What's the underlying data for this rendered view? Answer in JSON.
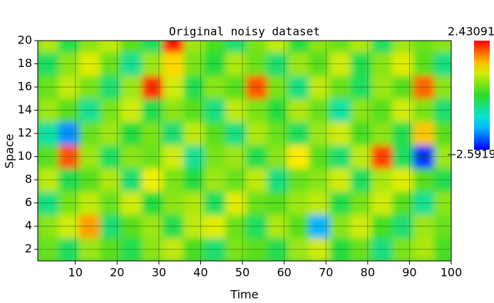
{
  "chart_data": {
    "type": "heatmap",
    "title": "Original noisy dataset",
    "x_label": "Time",
    "y_label": "Space",
    "x": [
      3.5,
      8.5,
      13.5,
      18.5,
      23.5,
      28.5,
      33.5,
      38.5,
      43.5,
      48.5,
      53.5,
      58.5,
      63.5,
      68.5,
      73.5,
      78.5,
      83.5,
      88.5,
      93.5,
      98.5
    ],
    "y": [
      2,
      4,
      6,
      8,
      10,
      12,
      14,
      16,
      18,
      20
    ],
    "z": [
      [
        0.3,
        -0.4,
        0.6,
        0.2,
        -0.3,
        0.5,
        0.8,
        0.1,
        -0.5,
        0.4,
        0.2,
        -0.3,
        0.6,
        0.9,
        -0.2,
        0.3,
        -0.6,
        0.4,
        0.7,
        0.1
      ],
      [
        0.5,
        0.9,
        1.6,
        -0.5,
        0.2,
        0.6,
        -0.3,
        0.8,
        1.0,
        0.3,
        -0.4,
        0.7,
        0.2,
        -1.6,
        0.5,
        0.9,
        0.1,
        -0.5,
        0.6,
        0.3
      ],
      [
        -0.6,
        0.4,
        0.8,
        0.3,
        0.9,
        -0.2,
        0.5,
        0.7,
        -0.4,
        1.0,
        0.3,
        0.2,
        0.6,
        0.8,
        -0.3,
        0.4,
        0.9,
        0.2,
        -0.7,
        0.5
      ],
      [
        0.8,
        -0.3,
        0.2,
        0.7,
        -0.5,
        1.1,
        0.4,
        -0.2,
        0.6,
        0.3,
        0.8,
        -0.6,
        0.3,
        0.5,
        0.9,
        -0.4,
        0.7,
        1.0,
        0.2,
        -0.3
      ],
      [
        0.2,
        2.0,
        0.6,
        -0.4,
        0.5,
        0.3,
        0.9,
        -0.7,
        0.4,
        0.6,
        -0.3,
        0.5,
        1.2,
        0.2,
        -0.5,
        0.8,
        2.1,
        -0.4,
        -2.3,
        0.6
      ],
      [
        -0.8,
        -1.8,
        0.3,
        0.6,
        -0.2,
        0.4,
        -0.5,
        0.8,
        0.2,
        -0.6,
        0.7,
        0.3,
        -0.4,
        0.6,
        0.9,
        0.1,
        0.5,
        -0.3,
        1.4,
        0.2
      ],
      [
        0.6,
        0.2,
        -0.7,
        0.4,
        0.9,
        -0.3,
        0.5,
        0.2,
        -0.6,
        0.8,
        0.4,
        -0.2,
        0.7,
        0.3,
        -0.8,
        0.5,
        0.2,
        0.9,
        0.4,
        -0.5
      ],
      [
        0.3,
        0.8,
        0.4,
        -0.5,
        0.6,
        2.2,
        0.9,
        -0.3,
        0.5,
        0.2,
        2.0,
        0.4,
        -0.6,
        0.8,
        0.3,
        -0.4,
        0.6,
        0.2,
        1.9,
        0.5
      ],
      [
        -0.4,
        0.5,
        1.0,
        0.3,
        -0.7,
        0.6,
        1.3,
        0.4,
        -0.2,
        0.7,
        0.3,
        -0.5,
        0.6,
        0.2,
        0.9,
        -0.3,
        0.5,
        1.0,
        0.2,
        -0.6
      ],
      [
        0.7,
        -0.3,
        0.5,
        0.8,
        0.2,
        -0.4,
        2.3,
        0.6,
        0.1,
        -0.5,
        0.4,
        0.8,
        -0.2,
        0.5,
        0.3,
        0.7,
        -0.4,
        0.6,
        0.3,
        0.5
      ]
    ],
    "zlim": [
      {
        "value": -2.5919,
        "label": "-2.5919"
      },
      {
        "value": 2.43091,
        "label": "2.43091"
      }
    ],
    "xlim": [
      1,
      100
    ],
    "xticks": [
      10,
      20,
      30,
      40,
      50,
      60,
      70,
      80,
      90,
      100
    ],
    "ylim": [
      1,
      20
    ],
    "yticks": [
      2,
      4,
      6,
      8,
      10,
      12,
      14,
      16,
      18,
      20
    ],
    "grid": true
  }
}
